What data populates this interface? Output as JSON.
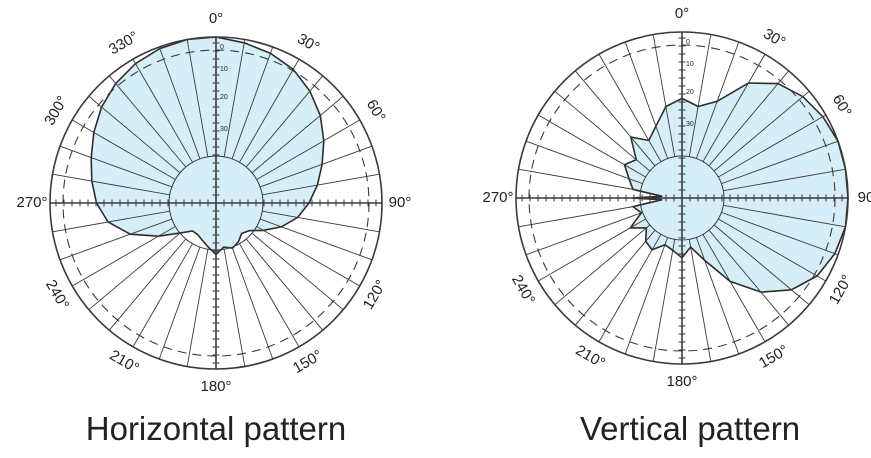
{
  "colors": {
    "fill": "#d6eef7",
    "line": "#2d2d2d",
    "grid": "#3a3a3a",
    "text": "#222222",
    "background": "#ffffff"
  },
  "diagrams": [
    {
      "caption": "Horizontal pattern",
      "angle_labels": [
        {
          "deg": 0,
          "text": "0°"
        },
        {
          "deg": 30,
          "text": "30°"
        },
        {
          "deg": 60,
          "text": "60°"
        },
        {
          "deg": 90,
          "text": "90°"
        },
        {
          "deg": 120,
          "text": "120°"
        },
        {
          "deg": 150,
          "text": "150°"
        },
        {
          "deg": 180,
          "text": "180°"
        },
        {
          "deg": 210,
          "text": "210°"
        },
        {
          "deg": 240,
          "text": "240°"
        },
        {
          "deg": 270,
          "text": "270°"
        },
        {
          "deg": 300,
          "text": "300°"
        },
        {
          "deg": 330,
          "text": "330°"
        }
      ],
      "scale_labels": [
        "0",
        "10",
        "20",
        "30"
      ],
      "pattern": [
        [
          0,
          1.0
        ],
        [
          10,
          0.98
        ],
        [
          20,
          0.96
        ],
        [
          30,
          0.93
        ],
        [
          40,
          0.88
        ],
        [
          50,
          0.82
        ],
        [
          60,
          0.75
        ],
        [
          70,
          0.68
        ],
        [
          80,
          0.62
        ],
        [
          90,
          0.56
        ],
        [
          100,
          0.5
        ],
        [
          110,
          0.42
        ],
        [
          120,
          0.33
        ],
        [
          130,
          0.26
        ],
        [
          140,
          0.24
        ],
        [
          150,
          0.27
        ],
        [
          160,
          0.29
        ],
        [
          170,
          0.27
        ],
        [
          180,
          0.31
        ],
        [
          190,
          0.27
        ],
        [
          200,
          0.24
        ],
        [
          210,
          0.22
        ],
        [
          220,
          0.22
        ],
        [
          230,
          0.28
        ],
        [
          240,
          0.4
        ],
        [
          250,
          0.55
        ],
        [
          260,
          0.66
        ],
        [
          270,
          0.72
        ],
        [
          280,
          0.76
        ],
        [
          290,
          0.8
        ],
        [
          300,
          0.85
        ],
        [
          310,
          0.9
        ],
        [
          320,
          0.94
        ],
        [
          330,
          0.97
        ],
        [
          340,
          0.99
        ],
        [
          350,
          1.0
        ]
      ]
    },
    {
      "caption": "Vertical pattern",
      "angle_labels": [
        {
          "deg": 0,
          "text": "0°"
        },
        {
          "deg": 30,
          "text": "30°"
        },
        {
          "deg": 60,
          "text": "60°"
        },
        {
          "deg": 90,
          "text": "90"
        },
        {
          "deg": 120,
          "text": "120°"
        },
        {
          "deg": 150,
          "text": "150°"
        },
        {
          "deg": 180,
          "text": "180°"
        },
        {
          "deg": 210,
          "text": "210°"
        },
        {
          "deg": 240,
          "text": "240°"
        },
        {
          "deg": 270,
          "text": "270°"
        }
      ],
      "scale_labels": [
        "0",
        "10",
        "20",
        "30"
      ],
      "pattern": [
        [
          0,
          0.6
        ],
        [
          10,
          0.56
        ],
        [
          20,
          0.62
        ],
        [
          30,
          0.8
        ],
        [
          40,
          0.9
        ],
        [
          50,
          0.95
        ],
        [
          60,
          0.98
        ],
        [
          70,
          1.0
        ],
        [
          80,
          1.0
        ],
        [
          90,
          1.0
        ],
        [
          100,
          1.0
        ],
        [
          110,
          0.98
        ],
        [
          120,
          0.94
        ],
        [
          130,
          0.86
        ],
        [
          140,
          0.74
        ],
        [
          150,
          0.58
        ],
        [
          160,
          0.4
        ],
        [
          170,
          0.3
        ],
        [
          180,
          0.36
        ],
        [
          190,
          0.32
        ],
        [
          200,
          0.3
        ],
        [
          210,
          0.36
        ],
        [
          220,
          0.34
        ],
        [
          230,
          0.28
        ],
        [
          240,
          0.36
        ],
        [
          250,
          0.26
        ],
        [
          260,
          0.3
        ],
        [
          265,
          0.12
        ],
        [
          270,
          0.3
        ],
        [
          275,
          0.12
        ],
        [
          280,
          0.3
        ],
        [
          290,
          0.34
        ],
        [
          300,
          0.4
        ],
        [
          310,
          0.36
        ],
        [
          320,
          0.48
        ],
        [
          330,
          0.4
        ],
        [
          340,
          0.46
        ],
        [
          350,
          0.56
        ]
      ]
    }
  ]
}
